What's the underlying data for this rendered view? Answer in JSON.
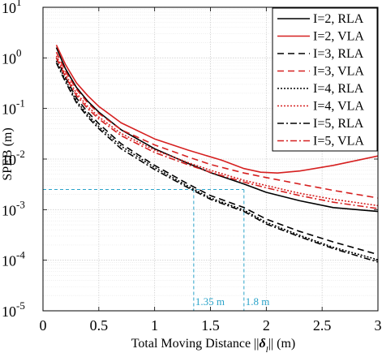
{
  "chart_data": {
    "type": "line",
    "xlabel_prefix": "Total Moving Distance ",
    "xlabel_norm_open": "||",
    "xlabel_symbol": "δ",
    "xlabel_subscript": "l",
    "xlabel_norm_close": "||",
    "xlabel_unit": " (m)",
    "ylabel": "SPEB (m)",
    "xlim": [
      0,
      3
    ],
    "ylim_log10": [
      -5,
      1
    ],
    "y_scale": "log",
    "grid": true,
    "legend_position": "top-right",
    "x_ticks": [
      0,
      0.5,
      1,
      1.5,
      2,
      2.5,
      3
    ],
    "x_tick_labels": [
      "0",
      "0.5",
      "1",
      "1.5",
      "2",
      "2.5",
      "3"
    ],
    "y_ticks_exp": [
      1,
      0,
      -1,
      -2,
      -3,
      -4,
      -5
    ],
    "y_tick_base": "10",
    "y_tick_exponents": [
      "1",
      "0",
      "-1",
      "-2",
      "-3",
      "-4",
      "-5"
    ],
    "series": [
      {
        "name": "I=2, RLA",
        "color": "#000000",
        "dash": "solid",
        "x": [
          0.12,
          0.2,
          0.3,
          0.4,
          0.5,
          0.7,
          1.0,
          1.3,
          1.5,
          1.8,
          2.0,
          2.3,
          2.6,
          3.0
        ],
        "y": [
          1.6,
          0.62,
          0.26,
          0.14,
          0.085,
          0.038,
          0.016,
          0.0082,
          0.0054,
          0.0032,
          0.0022,
          0.0015,
          0.0011,
          0.00092
        ]
      },
      {
        "name": "I=2, VLA",
        "color": "#d62020",
        "dash": "solid",
        "x": [
          0.12,
          0.2,
          0.3,
          0.4,
          0.5,
          0.7,
          1.0,
          1.3,
          1.6,
          1.8,
          1.95,
          2.1,
          2.3,
          2.6,
          3.0
        ],
        "y": [
          1.8,
          0.75,
          0.32,
          0.18,
          0.11,
          0.052,
          0.025,
          0.015,
          0.0095,
          0.0065,
          0.0055,
          0.0053,
          0.0058,
          0.0075,
          0.0115
        ]
      },
      {
        "name": "I=3, RLA",
        "color": "#000000",
        "dash": "8,5",
        "x": [
          0.12,
          0.2,
          0.3,
          0.4,
          0.5,
          0.7,
          1.0,
          1.3,
          1.5,
          1.8,
          2.0,
          2.3,
          2.6,
          3.0
        ],
        "y": [
          1.0,
          0.42,
          0.16,
          0.085,
          0.05,
          0.02,
          0.0075,
          0.0032,
          0.0019,
          0.0011,
          0.00065,
          0.00037,
          0.00023,
          0.00013
        ]
      },
      {
        "name": "I=3, VLA",
        "color": "#d62020",
        "dash": "8,5",
        "x": [
          0.12,
          0.2,
          0.3,
          0.4,
          0.5,
          0.7,
          1.0,
          1.3,
          1.5,
          1.8,
          2.0,
          2.3,
          2.6,
          3.0
        ],
        "y": [
          1.3,
          0.55,
          0.24,
          0.13,
          0.08,
          0.038,
          0.019,
          0.011,
          0.0078,
          0.0053,
          0.0043,
          0.0032,
          0.0024,
          0.0017
        ]
      },
      {
        "name": "I=4, RLA",
        "color": "#000000",
        "dash": "2,2",
        "x": [
          0.12,
          0.2,
          0.3,
          0.4,
          0.5,
          0.7,
          1.0,
          1.3,
          1.5,
          1.8,
          2.0,
          2.3,
          2.6,
          3.0
        ],
        "y": [
          0.88,
          0.37,
          0.14,
          0.075,
          0.044,
          0.018,
          0.0068,
          0.0029,
          0.0017,
          0.00098,
          0.00056,
          0.00031,
          0.00018,
          0.000102
        ]
      },
      {
        "name": "I=4, VLA",
        "color": "#d62020",
        "dash": "2,2",
        "x": [
          0.12,
          0.2,
          0.3,
          0.4,
          0.5,
          0.7,
          1.0,
          1.3,
          1.5,
          1.8,
          2.0,
          2.3,
          2.6,
          3.0
        ],
        "y": [
          1.1,
          0.48,
          0.2,
          0.11,
          0.068,
          0.032,
          0.015,
          0.0085,
          0.006,
          0.0038,
          0.003,
          0.0021,
          0.0016,
          0.0012
        ]
      },
      {
        "name": "I=5, RLA",
        "color": "#000000",
        "dash": "8,3,2,3",
        "x": [
          0.12,
          0.2,
          0.3,
          0.4,
          0.5,
          0.7,
          1.0,
          1.3,
          1.5,
          1.8,
          2.0,
          2.3,
          2.6,
          3.0
        ],
        "y": [
          0.8,
          0.34,
          0.13,
          0.068,
          0.04,
          0.016,
          0.0062,
          0.0027,
          0.0016,
          0.00092,
          0.00052,
          0.00029,
          0.00017,
          9.2e-05
        ]
      },
      {
        "name": "I=5, VLA",
        "color": "#d62020",
        "dash": "8,3,2,3",
        "x": [
          0.12,
          0.2,
          0.3,
          0.4,
          0.5,
          0.7,
          1.0,
          1.3,
          1.5,
          1.8,
          2.0,
          2.3,
          2.6,
          3.0
        ],
        "y": [
          1.0,
          0.43,
          0.18,
          0.1,
          0.062,
          0.029,
          0.0135,
          0.0077,
          0.0055,
          0.0035,
          0.0027,
          0.0019,
          0.0014,
          0.00105
        ]
      }
    ],
    "annotations": {
      "color": "#2aa3c9",
      "y_level": 0.0025,
      "x_markers": [
        {
          "x": 1.35,
          "label": "1.35 m"
        },
        {
          "x": 1.8,
          "label": "1.8 m"
        }
      ]
    }
  }
}
